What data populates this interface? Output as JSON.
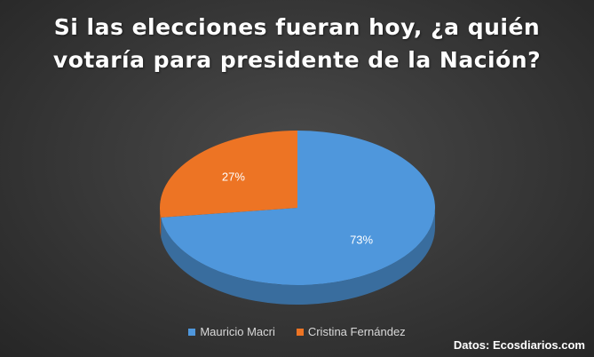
{
  "chart_data": {
    "type": "pie",
    "title": "Si las elecciones fueran hoy, ¿a quién votaría para presidente de la Nación?",
    "categories": [
      "Mauricio Macri",
      "Cristina Fernández"
    ],
    "values": [
      73,
      27
    ],
    "data_labels": [
      "73%",
      "27%"
    ],
    "colors": [
      "#4f97dc",
      "#ed7424"
    ],
    "legend_position": "bottom",
    "style": "3d"
  },
  "source": "Datos: Ecosdiarios.com"
}
